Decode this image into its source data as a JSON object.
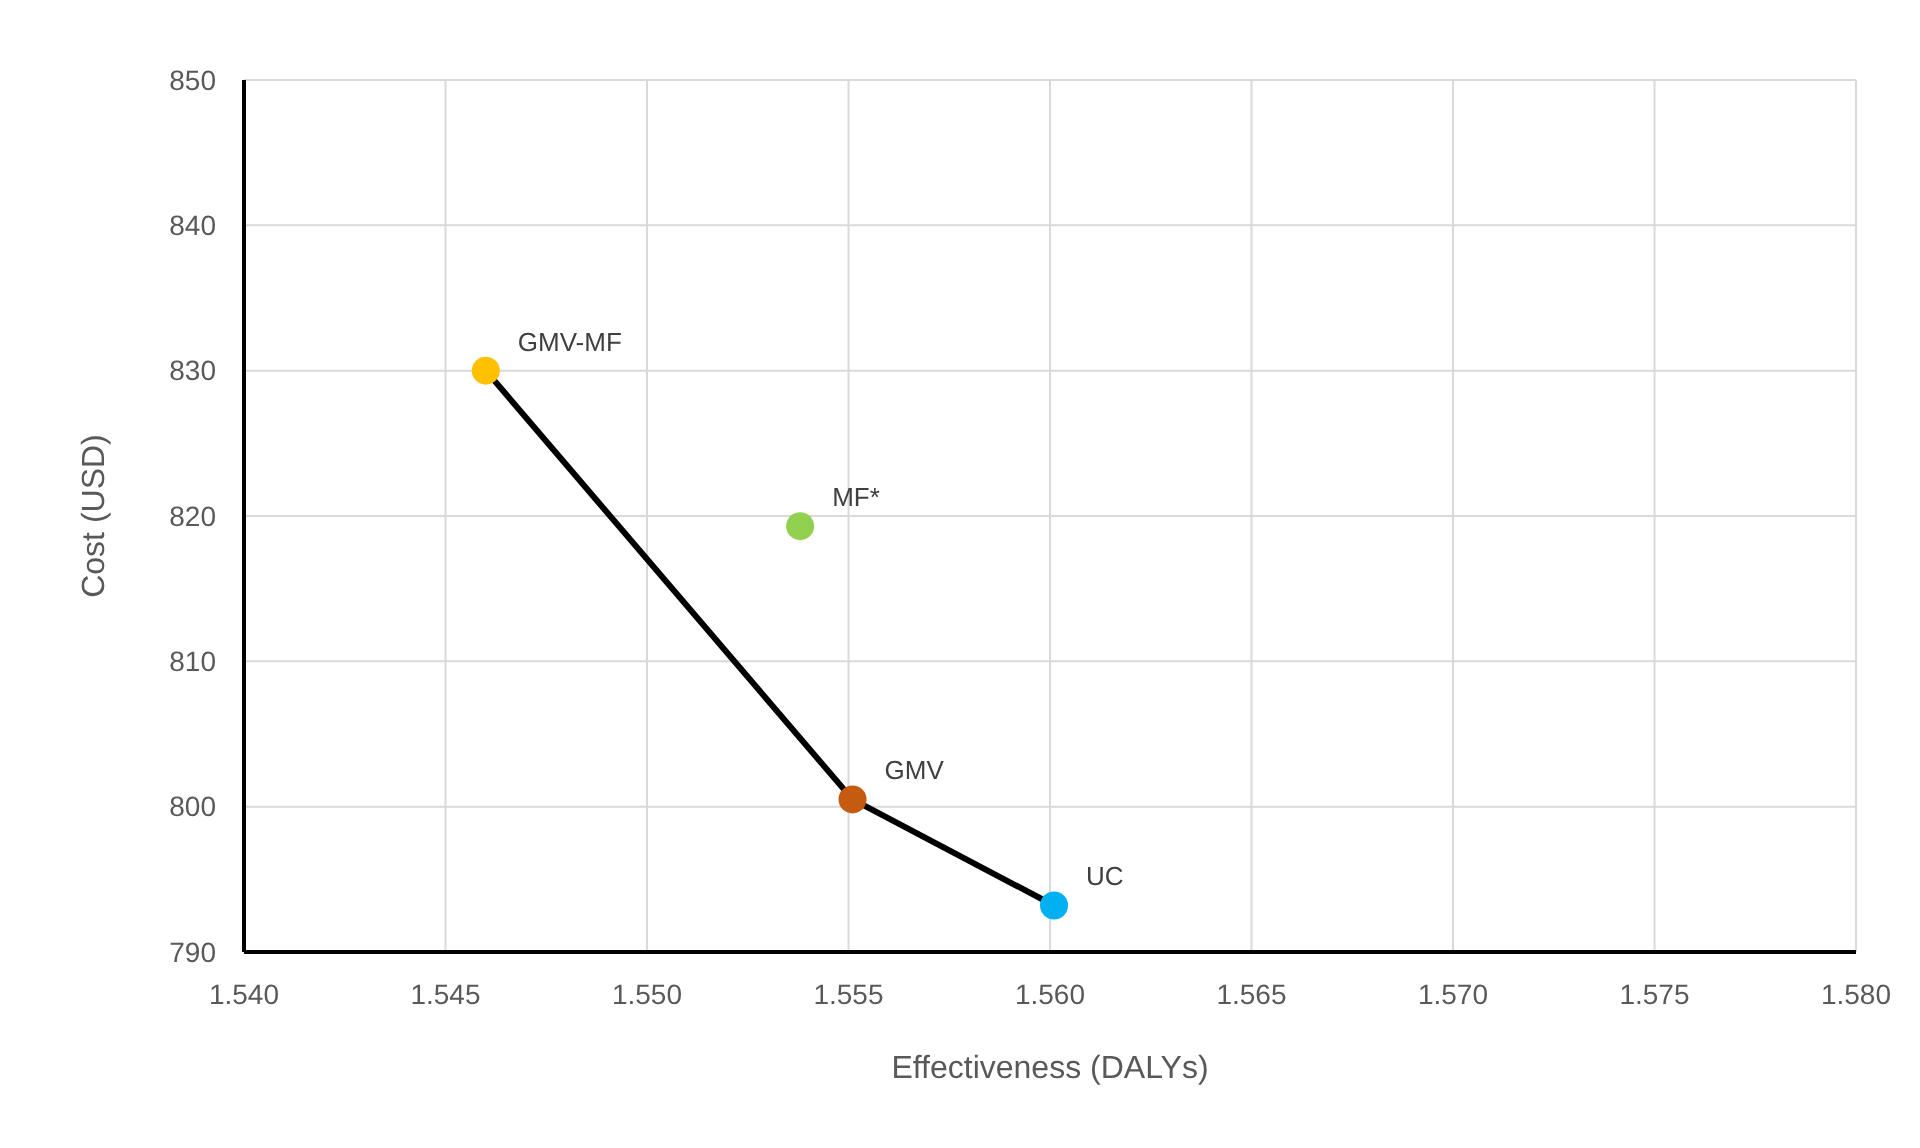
{
  "chart_data": {
    "type": "scatter",
    "xlabel": "Effectiveness (DALYs)",
    "ylabel": "Cost (USD)",
    "xlim": [
      1.54,
      1.58
    ],
    "xticks": [
      {
        "value": 1.54,
        "label": "1.540"
      },
      {
        "value": 1.545,
        "label": "1.545"
      },
      {
        "value": 1.55,
        "label": "1.550"
      },
      {
        "value": 1.555,
        "label": "1.555"
      },
      {
        "value": 1.56,
        "label": "1.560"
      },
      {
        "value": 1.565,
        "label": "1.565"
      },
      {
        "value": 1.57,
        "label": "1.570"
      },
      {
        "value": 1.575,
        "label": "1.575"
      },
      {
        "value": 1.58,
        "label": "1.580"
      }
    ],
    "ylim": [
      790,
      850
    ],
    "yticks": [
      790,
      800,
      810,
      820,
      830,
      840,
      850
    ],
    "grid": true,
    "marker": "circle",
    "series": [
      {
        "type": "line",
        "color": "#000000",
        "x": [
          1.546,
          1.5551,
          1.5601
        ],
        "values": [
          830,
          800.5,
          793.2
        ],
        "marker": "none"
      },
      {
        "name": "GMV-MF",
        "color": "#ffc000",
        "x": [
          1.546
        ],
        "values": [
          830
        ]
      },
      {
        "name": "MF*",
        "color": "#92d050",
        "x": [
          1.5538
        ],
        "values": [
          819.3
        ]
      },
      {
        "name": "GMV",
        "color": "#c55a11",
        "x": [
          1.5551
        ],
        "values": [
          800.5
        ]
      },
      {
        "name": "UC",
        "color": "#00b0f0",
        "x": [
          1.5601
        ],
        "values": [
          793.2
        ]
      }
    ]
  }
}
